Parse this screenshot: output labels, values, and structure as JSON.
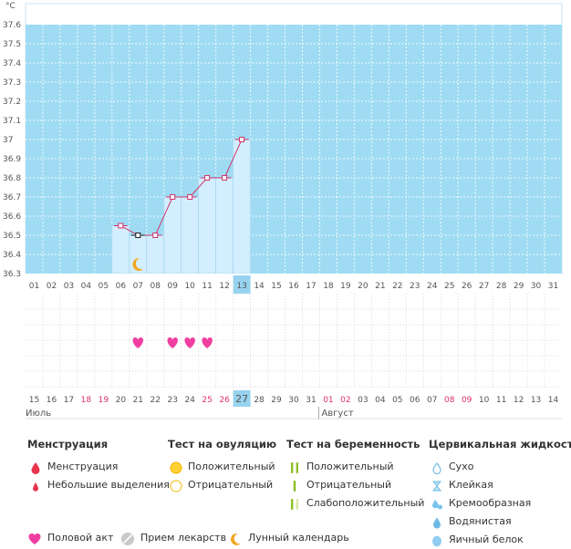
{
  "chart_data": {
    "type": "line",
    "ylabel": "°C",
    "ylim": [
      36.3,
      37.6
    ],
    "yticks": [
      "37.6",
      "37.5",
      "37.4",
      "37.3",
      "37.2",
      "37.1",
      "37",
      "36.9",
      "36.8",
      "36.7",
      "36.6",
      "36.5",
      "36.4",
      "36.3"
    ],
    "cycle_days": [
      "01",
      "02",
      "03",
      "04",
      "05",
      "06",
      "07",
      "08",
      "09",
      "10",
      "11",
      "12",
      "13",
      "14",
      "15",
      "16",
      "17",
      "18",
      "19",
      "20",
      "21",
      "22",
      "23",
      "24",
      "25",
      "26",
      "27",
      "28",
      "29",
      "30",
      "31"
    ],
    "dates": [
      "15",
      "16",
      "17",
      "18",
      "19",
      "20",
      "21",
      "22",
      "23",
      "24",
      "25",
      "26",
      "27",
      "28",
      "29",
      "30",
      "31",
      "01",
      "02",
      "03",
      "04",
      "05",
      "06",
      "07",
      "08",
      "09",
      "10",
      "11",
      "12",
      "13",
      "14"
    ],
    "highlight_dates": [
      "18",
      "19",
      "25",
      "26",
      "01",
      "02",
      "08",
      "09"
    ],
    "today_index": 12,
    "months": [
      {
        "label": "Июль",
        "start": 0
      },
      {
        "label": "Август",
        "start": 17
      }
    ],
    "series": [
      {
        "x": [
          "06",
          "07",
          "08",
          "09",
          "10",
          "11",
          "12",
          "13"
        ],
        "values": [
          36.55,
          36.5,
          36.5,
          36.7,
          36.7,
          36.8,
          36.8,
          37.0
        ]
      }
    ],
    "selected_point": "07",
    "intercourse_days": [
      "07",
      "09",
      "10",
      "11"
    ],
    "moon_days": [
      "07"
    ],
    "colors": {
      "band": "#9fdcf3",
      "bar_fill": "#d3efff",
      "bar_edge": "#a9d7f0",
      "line": "#d2336c",
      "today": "#97d3ef",
      "heart": "#f03fa0",
      "moon": "#f4a620",
      "date_red": "#e0306a"
    }
  },
  "legend": {
    "menstruation": {
      "title": "Менструация",
      "items": [
        "Менструация",
        "Небольшие выделения"
      ]
    },
    "ovulation": {
      "title": "Тест на овуляцию",
      "items": [
        "Положительный",
        "Отрицательный"
      ]
    },
    "pregnancy": {
      "title": "Тест на беременность",
      "items": [
        "Положительный",
        "Отрицательный",
        "Слабоположительный"
      ]
    },
    "cervical": {
      "title": "Цервикальная жидкость",
      "items": [
        "Сухо",
        "Клейкая",
        "Кремообразная",
        "Водянистая",
        "Яичный белок"
      ]
    },
    "bottom": [
      "Половой акт",
      "Прием лекарств",
      "Лунный календарь"
    ]
  }
}
